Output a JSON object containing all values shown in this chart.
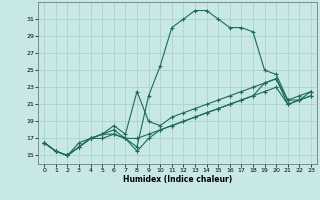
{
  "xlabel": "Humidex (Indice chaleur)",
  "bg_color": "#c8e8e8",
  "grid_color": "#a8cccc",
  "line_color": "#1a6b5a",
  "xlim": [
    -0.5,
    23.5
  ],
  "ylim": [
    14.0,
    33.0
  ],
  "yticks": [
    15,
    17,
    19,
    21,
    23,
    25,
    27,
    29,
    31
  ],
  "xticks": [
    0,
    1,
    2,
    3,
    4,
    5,
    6,
    7,
    8,
    9,
    10,
    11,
    12,
    13,
    14,
    15,
    16,
    17,
    18,
    19,
    20,
    21,
    22,
    23
  ],
  "lines": [
    [
      16.5,
      15.5,
      15.0,
      16.5,
      17.0,
      17.5,
      17.5,
      17.0,
      16.0,
      22.0,
      25.5,
      30.0,
      31.0,
      32.0,
      32.0,
      31.0,
      30.0,
      30.0,
      29.5,
      25.0,
      24.5,
      21.5,
      21.5,
      22.0
    ],
    [
      16.5,
      15.5,
      15.0,
      16.0,
      17.0,
      17.5,
      18.5,
      17.5,
      22.5,
      19.0,
      18.5,
      19.5,
      20.0,
      20.5,
      21.0,
      21.5,
      22.0,
      22.5,
      23.0,
      23.5,
      24.0,
      21.5,
      22.0,
      22.5
    ],
    [
      16.5,
      15.5,
      15.0,
      16.0,
      17.0,
      17.5,
      18.0,
      17.0,
      15.5,
      17.0,
      18.0,
      18.5,
      19.0,
      19.5,
      20.0,
      20.5,
      21.0,
      21.5,
      22.0,
      23.5,
      24.0,
      21.0,
      21.5,
      22.5
    ],
    [
      16.5,
      15.5,
      15.0,
      16.0,
      17.0,
      17.0,
      17.5,
      17.0,
      17.0,
      17.5,
      18.0,
      18.5,
      19.0,
      19.5,
      20.0,
      20.5,
      21.0,
      21.5,
      22.0,
      22.5,
      23.0,
      21.0,
      21.5,
      22.0
    ]
  ]
}
